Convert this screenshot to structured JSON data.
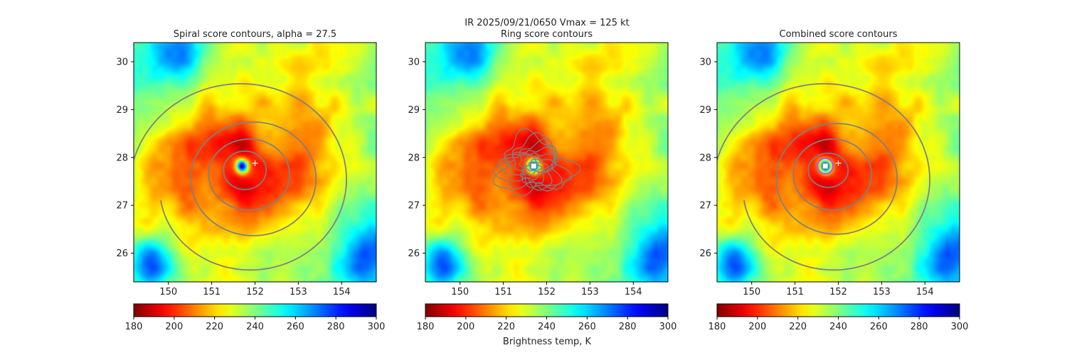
{
  "figure": {
    "suptitle_line1": "IR  2025/09/21/0650    Vmax = 125 kt",
    "colorbar_label": "Brightness temp, K"
  },
  "chart_data": [
    {
      "type": "heatmap",
      "title": "Spiral score contours, alpha = 27.5",
      "x_ticks": [
        150,
        151,
        152,
        153,
        154
      ],
      "y_ticks": [
        26,
        27,
        28,
        29,
        30
      ],
      "xlim": [
        149.2,
        154.8
      ],
      "ylim": [
        25.4,
        30.4
      ],
      "contours": "spiral",
      "markers": [
        {
          "kind": "plus",
          "lon": 152.0,
          "lat": 27.88
        }
      ]
    },
    {
      "type": "heatmap",
      "title": "Ring score contours",
      "x_ticks": [
        150,
        151,
        152,
        153,
        154
      ],
      "y_ticks": [
        26,
        27,
        28,
        29,
        30
      ],
      "xlim": [
        149.2,
        154.8
      ],
      "ylim": [
        25.4,
        30.4
      ],
      "contours": "ring",
      "markers": [
        {
          "kind": "square",
          "lon": 151.7,
          "lat": 27.82
        }
      ]
    },
    {
      "type": "heatmap",
      "title": "Combined score contours",
      "x_ticks": [
        150,
        151,
        152,
        153,
        154
      ],
      "y_ticks": [
        26,
        27,
        28,
        29,
        30
      ],
      "xlim": [
        149.2,
        154.8
      ],
      "ylim": [
        25.4,
        30.4
      ],
      "contours": "combined",
      "markers": [
        {
          "kind": "square",
          "lon": 151.7,
          "lat": 27.82
        },
        {
          "kind": "plus",
          "lon": 152.0,
          "lat": 27.88
        }
      ]
    }
  ],
  "colorbar": {
    "vmin": 180,
    "vmax": 300,
    "ticks": [
      180,
      200,
      220,
      240,
      260,
      280,
      300
    ],
    "colormap": "jet_r"
  },
  "storm": {
    "eye_lon": 151.7,
    "eye_lat": 27.82
  },
  "colors": {
    "contour": "#808080",
    "marker": "#ffffff"
  }
}
